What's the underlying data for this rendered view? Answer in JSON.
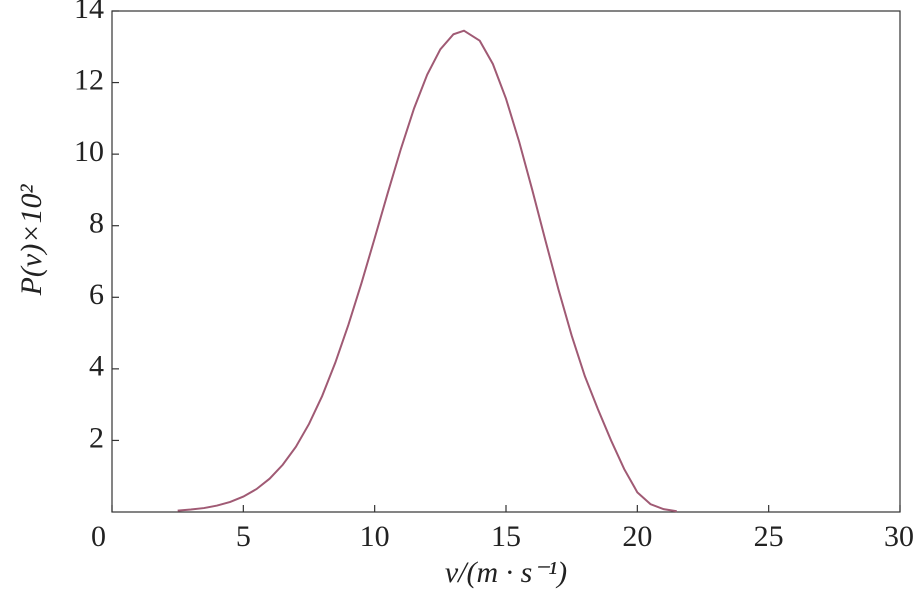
{
  "chart_data": {
    "type": "line",
    "x_label": "v/(m · s⁻¹)",
    "y_label": "P(v)×10²",
    "x": [
      2.5,
      3,
      3.5,
      4,
      4.5,
      5,
      5.5,
      6,
      6.5,
      7,
      7.5,
      8,
      8.5,
      9,
      9.5,
      10,
      10.5,
      11,
      11.5,
      12,
      12.5,
      13,
      13.4,
      14,
      14.5,
      15,
      15.5,
      16,
      16.5,
      17,
      17.5,
      18,
      18.5,
      19,
      19.5,
      20,
      20.5,
      21,
      21.5
    ],
    "series": [
      {
        "color": "#a05a74",
        "values": [
          0.04,
          0.07,
          0.11,
          0.18,
          0.28,
          0.43,
          0.64,
          0.93,
          1.32,
          1.82,
          2.46,
          3.24,
          4.17,
          5.23,
          6.4,
          7.65,
          8.92,
          10.15,
          11.28,
          12.22,
          12.93,
          13.35,
          13.45,
          13.17,
          12.52,
          11.55,
          10.35,
          9.0,
          7.59,
          6.21,
          4.93,
          3.8,
          2.87,
          2.0,
          1.2,
          0.55,
          0.22,
          0.08,
          0.02
        ]
      }
    ],
    "xlim": [
      0,
      30
    ],
    "xticks": [
      0,
      5,
      10,
      15,
      20,
      25,
      30
    ],
    "ylim": [
      0,
      14
    ],
    "yticks": [
      2,
      4,
      6,
      8,
      10,
      12,
      14
    ],
    "grid": false
  }
}
